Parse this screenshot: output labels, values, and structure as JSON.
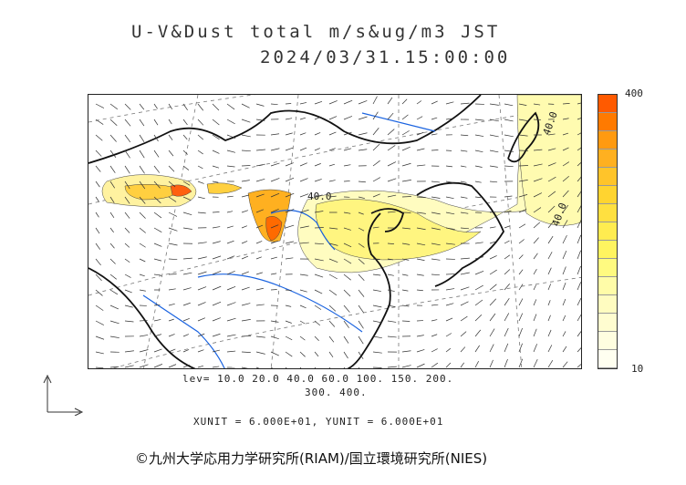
{
  "title": {
    "line1": "U-V&Dust total m/s&ug/m3 JST",
    "line2": "2024/03/31.15:00:00"
  },
  "map": {
    "contour_labels": [
      "40.0",
      "40.0",
      "40.0"
    ]
  },
  "colorbar": {
    "max_label": "400",
    "min_label": "10",
    "colors": [
      "#ff5a00",
      "#ff7a00",
      "#ff9a10",
      "#ffb020",
      "#ffc42a",
      "#ffd430",
      "#ffe040",
      "#ffec50",
      "#fff460",
      "#fffa80",
      "#fffca8",
      "#fffcc0",
      "#fffdd0",
      "#fffee0",
      "#fffff0"
    ]
  },
  "levels": {
    "line1": "lev= 10.0 20.0 40.0 60.0 100. 150. 200.",
    "line2": "300. 400."
  },
  "units_text": "XUNIT = 6.000E+01, YUNIT = 6.000E+01",
  "copyright": "©九州大学応用力学研究所(RIAM)/国立環境研究所(NIES)"
}
